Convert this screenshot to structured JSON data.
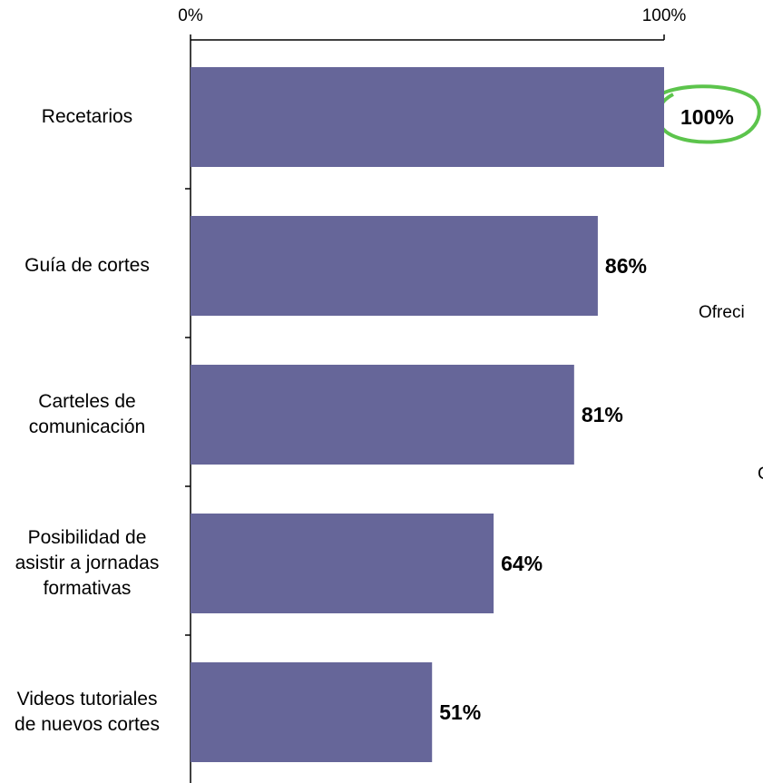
{
  "chart_data": {
    "type": "bar",
    "orientation": "horizontal",
    "categories": [
      "Recetarios",
      "Guía de cortes",
      "Carteles de comunicación",
      "Posibilidad de asistir a jornadas formativas",
      "Videos tutoriales de nuevos cortes"
    ],
    "values": [
      100,
      86,
      81,
      64,
      51
    ],
    "value_labels": [
      "100%",
      "86%",
      "81%",
      "64%",
      "51%"
    ],
    "color": "#666699",
    "xlim": [
      0,
      100
    ],
    "xticks": [
      {
        "value": 0,
        "label": "0%"
      },
      {
        "value": 100,
        "label": "100%"
      }
    ],
    "annotations": [
      "Ofreci",
      "C"
    ]
  }
}
